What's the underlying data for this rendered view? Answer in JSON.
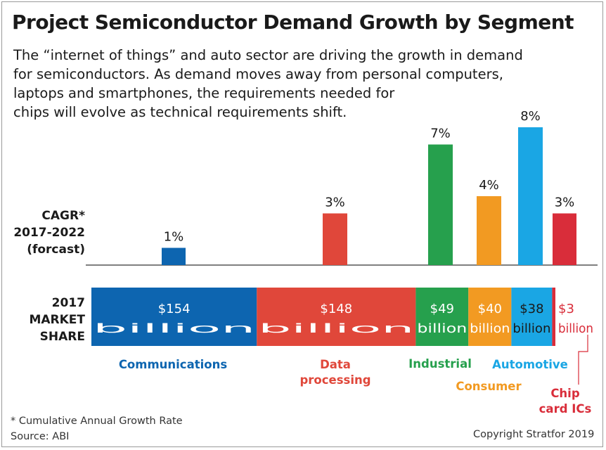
{
  "title": "Project Semiconductor Demand Growth by Segment",
  "subtitle_lines": [
    "The “internet of things” and auto sector are driving the growth in demand",
    "for semiconductors. As demand moves away from personal computers,",
    "laptops and smartphones, the requirements needed for",
    "chips will evolve as technical requirements shift."
  ],
  "cagr_label": [
    "CAGR*",
    "2017-2022",
    "(forcast)"
  ],
  "market_label": [
    "2017",
    "MARKET",
    "SHARE"
  ],
  "footnote": "* Cumulative Annual Growth Rate",
  "source": "Source: ABI",
  "copyright": "Copyright Stratfor 2019",
  "colors": {
    "communications": "#0d65b0",
    "data_processing": "#e0473a",
    "industrial": "#26a04d",
    "consumer": "#f29a22",
    "automotive": "#1aa6e4",
    "chip_card": "#d92d3a"
  },
  "chart_data": {
    "type": "bar",
    "title": "Project Semiconductor Demand Growth by Segment",
    "segments": [
      {
        "name": "Communications",
        "label_lines": [
          "Communications"
        ],
        "cagr": 1,
        "cagr_label": "1%",
        "market_share": 154,
        "value_lines": [
          "$154",
          "billion"
        ],
        "color": "#0d65b0"
      },
      {
        "name": "Data processing",
        "label_lines": [
          "Data",
          "processing"
        ],
        "cagr": 3,
        "cagr_label": "3%",
        "market_share": 148,
        "value_lines": [
          "$148",
          "billion"
        ],
        "color": "#e0473a"
      },
      {
        "name": "Industrial",
        "label_lines": [
          "Industrial"
        ],
        "cagr": 7,
        "cagr_label": "7%",
        "market_share": 49,
        "value_lines": [
          "$49",
          "billion"
        ],
        "color": "#26a04d"
      },
      {
        "name": "Consumer",
        "label_lines": [
          "Consumer"
        ],
        "cagr": 4,
        "cagr_label": "4%",
        "market_share": 40,
        "value_lines": [
          "$40",
          "billion"
        ],
        "color": "#f29a22"
      },
      {
        "name": "Automotive",
        "label_lines": [
          "Automotive"
        ],
        "cagr": 8,
        "cagr_label": "8%",
        "market_share": 38,
        "value_lines": [
          "$38",
          "billion"
        ],
        "color": "#1aa6e4"
      },
      {
        "name": "Chip card ICs",
        "label_lines": [
          "Chip",
          "card ICs"
        ],
        "cagr": 3,
        "cagr_label": "3%",
        "market_share": 3,
        "value_lines": [
          "$3",
          "billion"
        ],
        "color": "#d92d3a"
      }
    ],
    "cagr_unit": "%",
    "market_share_unit": "$ billion",
    "grid": false
  }
}
